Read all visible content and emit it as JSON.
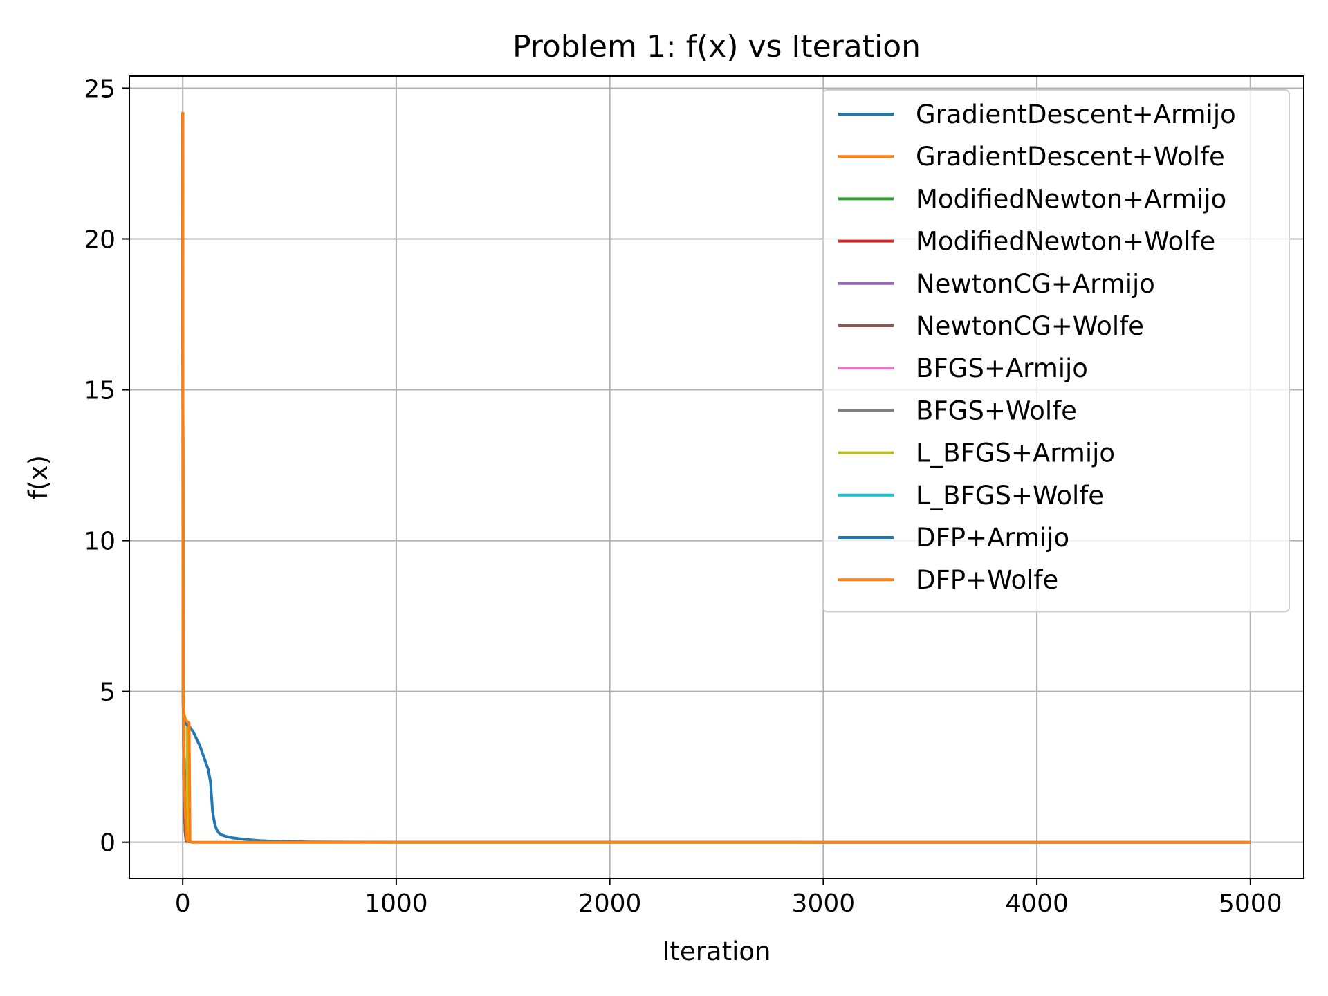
{
  "chart_data": {
    "type": "line",
    "title": "Problem 1: f(x) vs Iteration",
    "xlabel": "Iteration",
    "ylabel": "f(x)",
    "xlim": [
      -250,
      5250
    ],
    "ylim": [
      -1.2,
      25.4
    ],
    "xticks": [
      0,
      1000,
      2000,
      3000,
      4000,
      5000
    ],
    "yticks": [
      0,
      5,
      10,
      15,
      20,
      25
    ],
    "xtick_labels": [
      "0",
      "1000",
      "2000",
      "3000",
      "4000",
      "5000"
    ],
    "ytick_labels": [
      "0",
      "5",
      "10",
      "15",
      "20",
      "25"
    ],
    "grid": true,
    "legend_position": "top-right",
    "series": [
      {
        "name": "GradientDescent+Armijo",
        "color": "#1f77b4",
        "x": [
          0,
          1,
          3,
          6,
          10,
          20,
          30,
          40,
          50,
          60,
          70,
          80,
          90,
          100,
          110,
          120,
          130,
          135,
          140,
          150,
          160,
          170,
          180,
          200,
          230,
          260,
          300,
          350,
          400,
          500,
          600,
          800,
          1000,
          1500,
          2000,
          3000,
          4000,
          5000
        ],
        "y": [
          24.2,
          8.0,
          4.5,
          4.1,
          3.95,
          3.9,
          3.85,
          3.75,
          3.65,
          3.5,
          3.35,
          3.2,
          3.0,
          2.8,
          2.6,
          2.4,
          2.0,
          1.5,
          1.0,
          0.6,
          0.4,
          0.3,
          0.25,
          0.2,
          0.15,
          0.12,
          0.09,
          0.06,
          0.04,
          0.02,
          0.01,
          0.005,
          0.002,
          0.001,
          0.0005,
          0.0002,
          0.0001,
          0.0
        ]
      },
      {
        "name": "GradientDescent+Wolfe",
        "color": "#ff7f0e",
        "x": [
          0,
          1,
          3,
          6,
          10,
          15,
          20,
          25,
          30,
          32,
          34,
          40,
          100,
          1000,
          2000,
          3000,
          4000,
          5000
        ],
        "y": [
          24.2,
          10.0,
          4.6,
          4.2,
          4.1,
          4.05,
          4.0,
          3.98,
          3.95,
          2.0,
          0.05,
          0.0,
          0.0,
          0.0,
          0.0,
          0.0,
          0.0,
          0.0
        ]
      },
      {
        "name": "ModifiedNewton+Armijo",
        "color": "#2ca02c",
        "x": [
          0,
          2,
          5,
          8,
          12,
          16,
          20
        ],
        "y": [
          24.2,
          5.0,
          2.5,
          1.0,
          0.3,
          0.05,
          0.0
        ]
      },
      {
        "name": "ModifiedNewton+Wolfe",
        "color": "#d62728",
        "x": [
          0,
          2,
          5,
          8,
          12,
          16,
          20
        ],
        "y": [
          24.2,
          5.0,
          2.5,
          1.0,
          0.3,
          0.05,
          0.0
        ]
      },
      {
        "name": "NewtonCG+Armijo",
        "color": "#9467bd",
        "x": [
          0,
          2,
          5,
          8,
          12,
          16,
          22
        ],
        "y": [
          24.2,
          4.8,
          2.4,
          1.0,
          0.3,
          0.05,
          0.0
        ]
      },
      {
        "name": "NewtonCG+Wolfe",
        "color": "#8c564b",
        "x": [
          0,
          2,
          5,
          8,
          12,
          16,
          22
        ],
        "y": [
          24.2,
          4.8,
          2.4,
          1.0,
          0.3,
          0.05,
          0.0
        ]
      },
      {
        "name": "BFGS+Armijo",
        "color": "#e377c2",
        "x": [
          0,
          2,
          5,
          10,
          15,
          20,
          25,
          30
        ],
        "y": [
          24.2,
          5.0,
          3.0,
          1.8,
          0.8,
          0.2,
          0.03,
          0.0
        ]
      },
      {
        "name": "BFGS+Wolfe",
        "color": "#7f7f7f",
        "x": [
          0,
          2,
          5,
          10,
          15,
          20,
          25,
          30
        ],
        "y": [
          24.2,
          5.0,
          3.0,
          1.8,
          0.8,
          0.2,
          0.03,
          0.0
        ]
      },
      {
        "name": "L_BFGS+Armijo",
        "color": "#bcbd22",
        "x": [
          0,
          2,
          5,
          10,
          16,
          20,
          22,
          25,
          30
        ],
        "y": [
          24.2,
          5.0,
          4.3,
          4.15,
          4.0,
          3.9,
          1.5,
          0.1,
          0.0
        ]
      },
      {
        "name": "L_BFGS+Wolfe",
        "color": "#17becf",
        "x": [
          0,
          2,
          5,
          10,
          15,
          20,
          25
        ],
        "y": [
          24.2,
          5.0,
          2.8,
          1.5,
          0.6,
          0.1,
          0.0
        ]
      },
      {
        "name": "DFP+Armijo",
        "color": "#1f77b4",
        "x": [
          0,
          2,
          5,
          10,
          15,
          20,
          25,
          30,
          35
        ],
        "y": [
          24.2,
          5.0,
          3.2,
          2.0,
          1.2,
          0.5,
          0.1,
          0.02,
          0.0
        ]
      },
      {
        "name": "DFP+Wolfe",
        "color": "#ff7f0e",
        "x": [
          0,
          1,
          3,
          6,
          10,
          15,
          20,
          25,
          28
        ],
        "y": [
          24.2,
          8.0,
          4.0,
          2.5,
          1.4,
          0.5,
          0.1,
          0.02,
          0.0
        ]
      }
    ]
  }
}
